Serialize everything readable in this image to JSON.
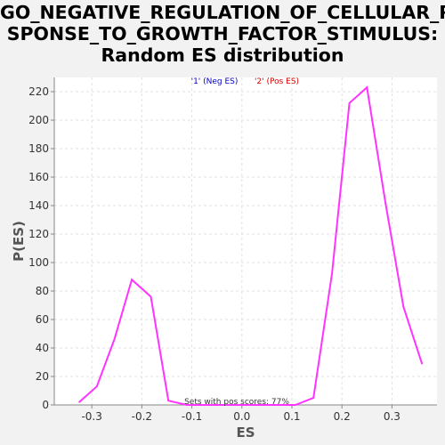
{
  "chart_data": {
    "type": "line",
    "title_lines": [
      "GO_NEGATIVE_REGULATION_OF_CELLULAR_RE",
      "SPONSE_TO_GROWTH_FACTOR_STIMULUS:",
      "Random ES distribution"
    ],
    "xlabel": "ES",
    "ylabel": "P(ES)",
    "xlim": [
      -0.375,
      0.39
    ],
    "ylim": [
      0,
      230
    ],
    "x_ticks": [
      -0.3,
      -0.2,
      -0.1,
      0.0,
      0.1,
      0.2,
      0.3
    ],
    "x_tick_labels": [
      "-0.3",
      "-0.2",
      "-0.1",
      "0.0",
      "0.1",
      "0.2",
      "0.3"
    ],
    "y_ticks": [
      0,
      20,
      40,
      60,
      80,
      100,
      120,
      140,
      160,
      180,
      200,
      220
    ],
    "y_tick_labels": [
      "0",
      "20",
      "40",
      "60",
      "80",
      "100",
      "120",
      "140",
      "160",
      "180",
      "200",
      "220"
    ],
    "grid": true,
    "legend": {
      "placement": "top-center",
      "entries": [
        {
          "label": "'1' (Neg ES)",
          "color": "#0000cc"
        },
        {
          "label": "'2' (Pos ES)",
          "color": "#dd0000"
        }
      ]
    },
    "annotation": "Sets with pos scores: 77%",
    "series": [
      {
        "color": "#ff33ff",
        "x": [
          -0.325,
          -0.29,
          -0.255,
          -0.22,
          -0.182,
          -0.147,
          -0.11,
          -0.073,
          -0.036,
          0.0,
          0.036,
          0.072,
          0.107,
          0.143,
          0.18,
          0.215,
          0.25,
          0.287,
          0.323,
          0.36
        ],
        "y": [
          2,
          13,
          46,
          88,
          76,
          3,
          0,
          0,
          0,
          0,
          0,
          0,
          0,
          5,
          92,
          212,
          223,
          142,
          69,
          29
        ]
      }
    ]
  }
}
